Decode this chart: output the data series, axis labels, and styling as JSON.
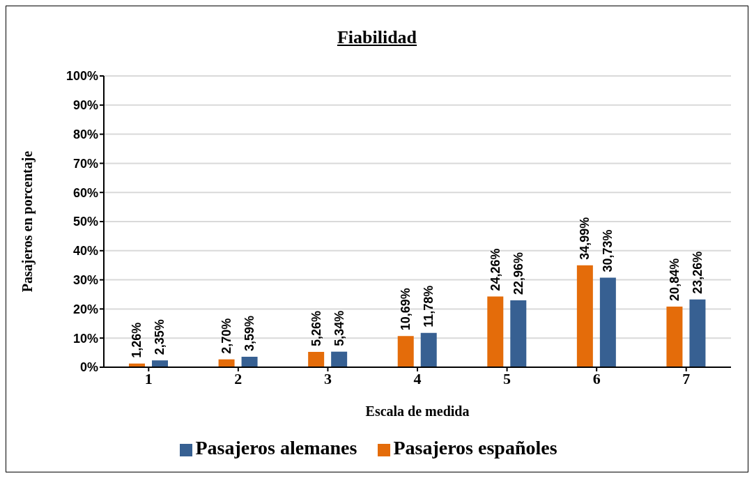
{
  "chart_data": {
    "type": "bar",
    "title": "Fiabilidad",
    "xlabel": "Escala de medida",
    "ylabel": "Pasajeros en porcentaje",
    "categories": [
      "1",
      "2",
      "3",
      "4",
      "5",
      "6",
      "7"
    ],
    "series": [
      {
        "name": "Pasajeros españoles",
        "color": "#e46c0a",
        "values": [
          1.26,
          2.7,
          5.26,
          10.69,
          24.26,
          34.99,
          20.84
        ],
        "value_labels": [
          "1,26%",
          "2,70%",
          "5,26%",
          "10,69%",
          "24,26%",
          "34,99%",
          "20,84%"
        ]
      },
      {
        "name": "Pasajeros alemanes",
        "color": "#376092",
        "values": [
          2.35,
          3.59,
          5.34,
          11.78,
          22.96,
          30.73,
          23.26
        ],
        "value_labels": [
          "2,35%",
          "3,59%",
          "5,34%",
          "11,78%",
          "22,96%",
          "30,73%",
          "23,26%"
        ]
      }
    ],
    "ylim": [
      0,
      100
    ],
    "yticks": [
      {
        "value": 0,
        "label": "0%"
      },
      {
        "value": 10,
        "label": "10%"
      },
      {
        "value": 20,
        "label": "20%"
      },
      {
        "value": 30,
        "label": "30%"
      },
      {
        "value": 40,
        "label": "40%"
      },
      {
        "value": 50,
        "label": "50%"
      },
      {
        "value": 60,
        "label": "60%"
      },
      {
        "value": 70,
        "label": "70%"
      },
      {
        "value": 80,
        "label": "80%"
      },
      {
        "value": 90,
        "label": "90%"
      },
      {
        "value": 100,
        "label": "100%"
      }
    ],
    "grid": "y",
    "legend": "bottom"
  }
}
